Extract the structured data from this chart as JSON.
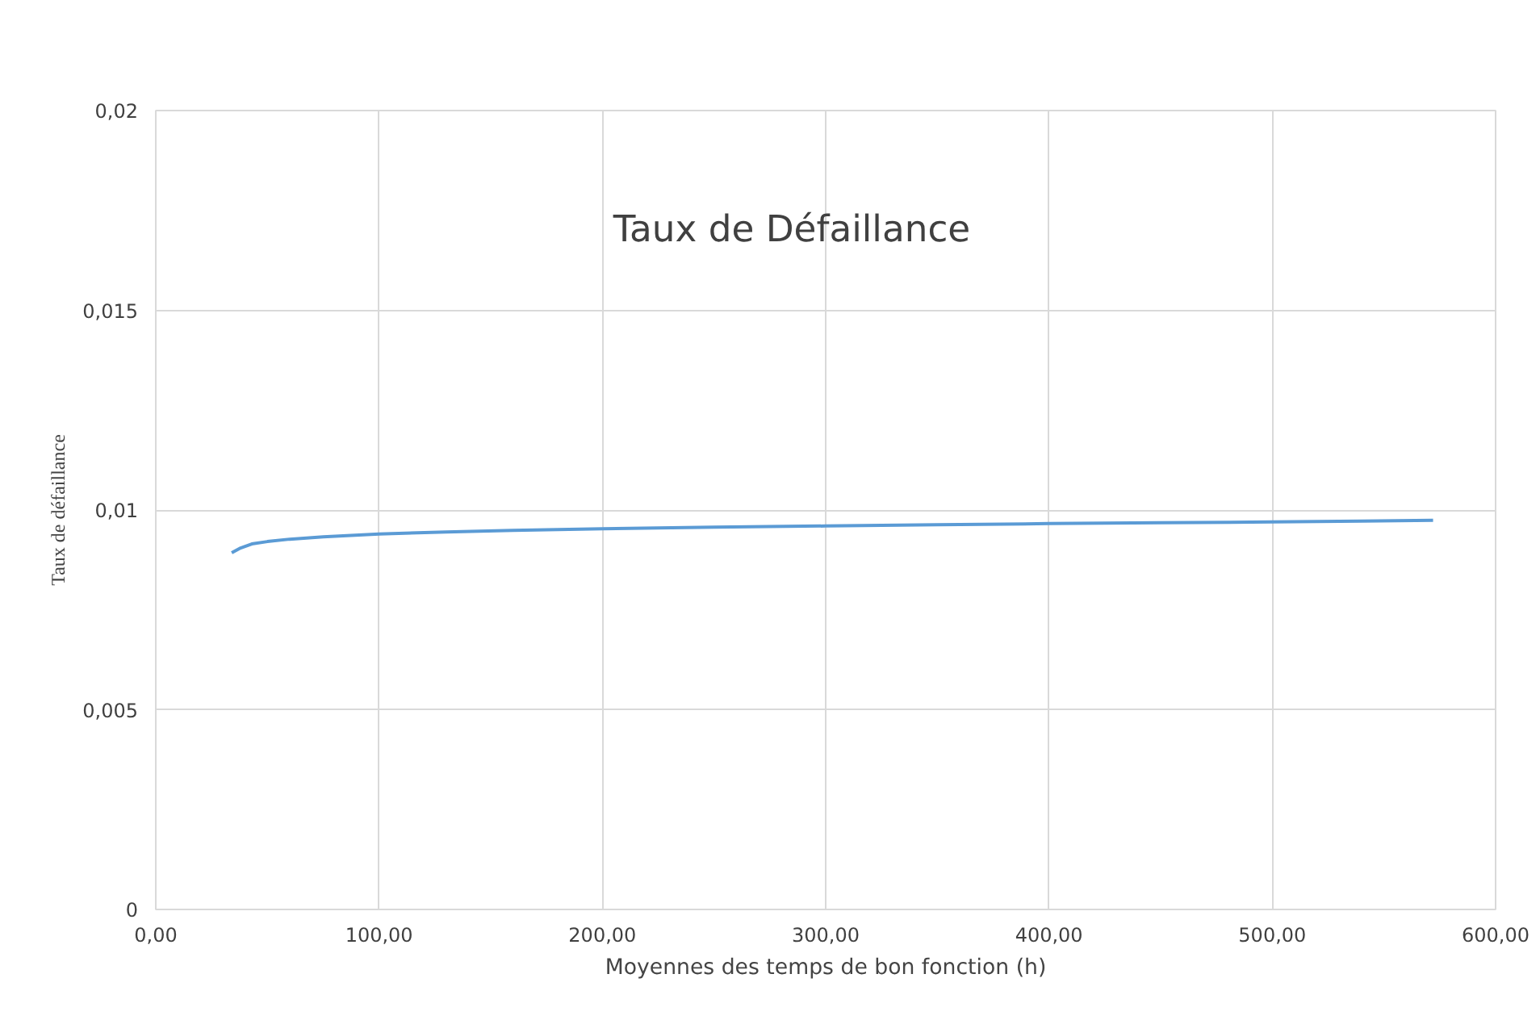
{
  "chart_data": {
    "type": "line",
    "title": "Taux de Défaillance",
    "xlabel": "Moyennes des temps de bon fonction (h)",
    "ylabel": "Taux de défaillance",
    "x": [
      34,
      38,
      43,
      50,
      60,
      75,
      100,
      130,
      160,
      200,
      250,
      300,
      350,
      400,
      450,
      500,
      540,
      572
    ],
    "series": [
      {
        "color": "#5b9bd5",
        "values": [
          0.00893,
          0.00905,
          0.00915,
          0.00921,
          0.00927,
          0.00933,
          0.0094,
          0.00945,
          0.00949,
          0.00953,
          0.00957,
          0.0096,
          0.00963,
          0.00966,
          0.00968,
          0.0097,
          0.00972,
          0.00974
        ]
      }
    ],
    "xlim": [
      0,
      600
    ],
    "xticks": [
      {
        "value": 0,
        "label": "0,00"
      },
      {
        "value": 100,
        "label": "100,00"
      },
      {
        "value": 200,
        "label": "200,00"
      },
      {
        "value": 300,
        "label": "300,00"
      },
      {
        "value": 400,
        "label": "400,00"
      },
      {
        "value": 500,
        "label": "500,00"
      },
      {
        "value": 600,
        "label": "600,00"
      }
    ],
    "ylim": [
      0,
      0.02
    ],
    "yticks": [
      0,
      {
        "value": 0.005,
        "label": "0,005"
      },
      {
        "value": 0.01,
        "label": "0,01"
      },
      {
        "value": 0.015,
        "label": "0,015"
      },
      {
        "value": 0.02,
        "label": "0,02"
      }
    ],
    "grid": true,
    "marker": "none",
    "line_style": "solid"
  }
}
